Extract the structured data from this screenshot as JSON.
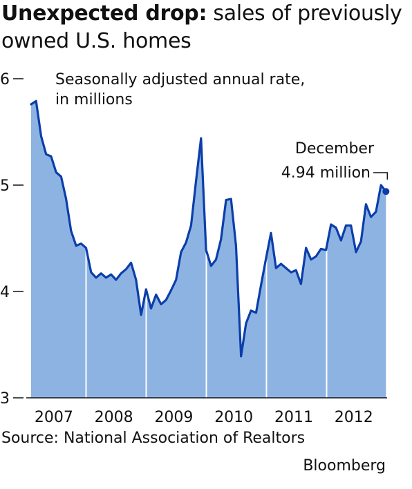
{
  "title": {
    "bold": "Unexpected drop:",
    "rest": " sales of previously owned U.S. homes"
  },
  "source": "Source: National Association of Realtors",
  "credit": "Bloomberg",
  "colors": {
    "area": "#8db3e2",
    "line": "#0b3eaa",
    "text": "#111111"
  },
  "chart_data": {
    "type": "area",
    "ylabel": "Seasonally adjusted annual rate, in millions",
    "ylim": [
      3,
      6
    ],
    "yticks": [
      3,
      4,
      5,
      6
    ],
    "categories": [
      "2007",
      "2008",
      "2009",
      "2010",
      "2011",
      "2012"
    ],
    "annotation": {
      "line1": "December",
      "line2": "4.94 million",
      "x": 71,
      "y": 4.94
    },
    "x": [
      0,
      1,
      2,
      3,
      4,
      5,
      6,
      7,
      8,
      9,
      10,
      11,
      12,
      13,
      14,
      15,
      16,
      17,
      18,
      19,
      20,
      21,
      22,
      23,
      24,
      25,
      26,
      27,
      28,
      29,
      30,
      31,
      32,
      33,
      34,
      35,
      36,
      37,
      38,
      39,
      40,
      41,
      42,
      43,
      44,
      45,
      46,
      47,
      48,
      49,
      50,
      51,
      52,
      53,
      54,
      55,
      56,
      57,
      58,
      59,
      60,
      61,
      62,
      63,
      64,
      65,
      66,
      67,
      68,
      69,
      70,
      71
    ],
    "values": [
      5.76,
      5.79,
      5.46,
      5.29,
      5.27,
      5.12,
      5.08,
      4.87,
      4.57,
      4.43,
      4.45,
      4.41,
      4.18,
      4.13,
      4.17,
      4.13,
      4.16,
      4.11,
      4.17,
      4.21,
      4.27,
      4.11,
      3.78,
      4.02,
      3.84,
      3.97,
      3.88,
      3.92,
      4.01,
      4.11,
      4.37,
      4.46,
      4.62,
      5.04,
      5.44,
      4.39,
      4.24,
      4.3,
      4.49,
      4.86,
      4.87,
      4.43,
      3.39,
      3.7,
      3.82,
      3.8,
      4.06,
      4.31,
      4.55,
      4.22,
      4.26,
      4.22,
      4.18,
      4.2,
      4.07,
      4.41,
      4.3,
      4.33,
      4.4,
      4.39,
      4.63,
      4.6,
      4.48,
      4.62,
      4.62,
      4.37,
      4.47,
      4.82,
      4.7,
      4.75,
      5.0,
      4.94
    ]
  }
}
